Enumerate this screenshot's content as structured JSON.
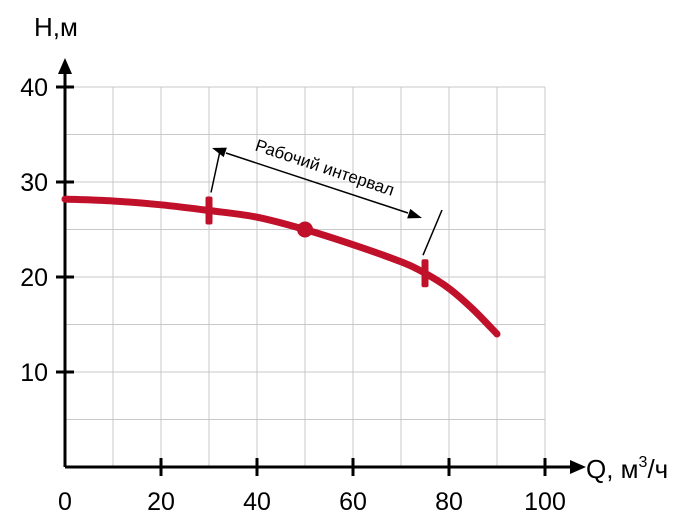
{
  "chart_data": {
    "type": "line",
    "ylabel": "H,м",
    "xlabel_main": "Q, м",
    "xlabel_sup": "3",
    "xlabel_end": "/ч",
    "x_ticks": [
      "0",
      "20",
      "40",
      "60",
      "80",
      "100"
    ],
    "y_ticks": [
      "10",
      "20",
      "30",
      "40"
    ],
    "xlim": [
      0,
      100
    ],
    "ylim": [
      0,
      40
    ],
    "x_minor_step": 10,
    "y_minor_step": 5,
    "grid": true,
    "series": [
      {
        "color": "#c0102a",
        "points": [
          {
            "x": 0,
            "y": 28.2
          },
          {
            "x": 10,
            "y": 28.0
          },
          {
            "x": 20,
            "y": 27.6
          },
          {
            "x": 30,
            "y": 27.0
          },
          {
            "x": 40,
            "y": 26.3
          },
          {
            "x": 50,
            "y": 25.0
          },
          {
            "x": 60,
            "y": 23.4
          },
          {
            "x": 70,
            "y": 21.6
          },
          {
            "x": 75,
            "y": 20.4
          },
          {
            "x": 80,
            "y": 18.8
          },
          {
            "x": 85,
            "y": 16.6
          },
          {
            "x": 90,
            "y": 14.0
          }
        ]
      }
    ],
    "markers": [
      {
        "kind": "bar",
        "x": 30,
        "y": 27.0
      },
      {
        "kind": "dot",
        "x": 50,
        "y": 25.0
      },
      {
        "kind": "bar",
        "x": 75,
        "y": 20.4
      }
    ],
    "annotation": {
      "text": "Рабочий интервал",
      "x_start": 30,
      "x_end": 75
    }
  }
}
